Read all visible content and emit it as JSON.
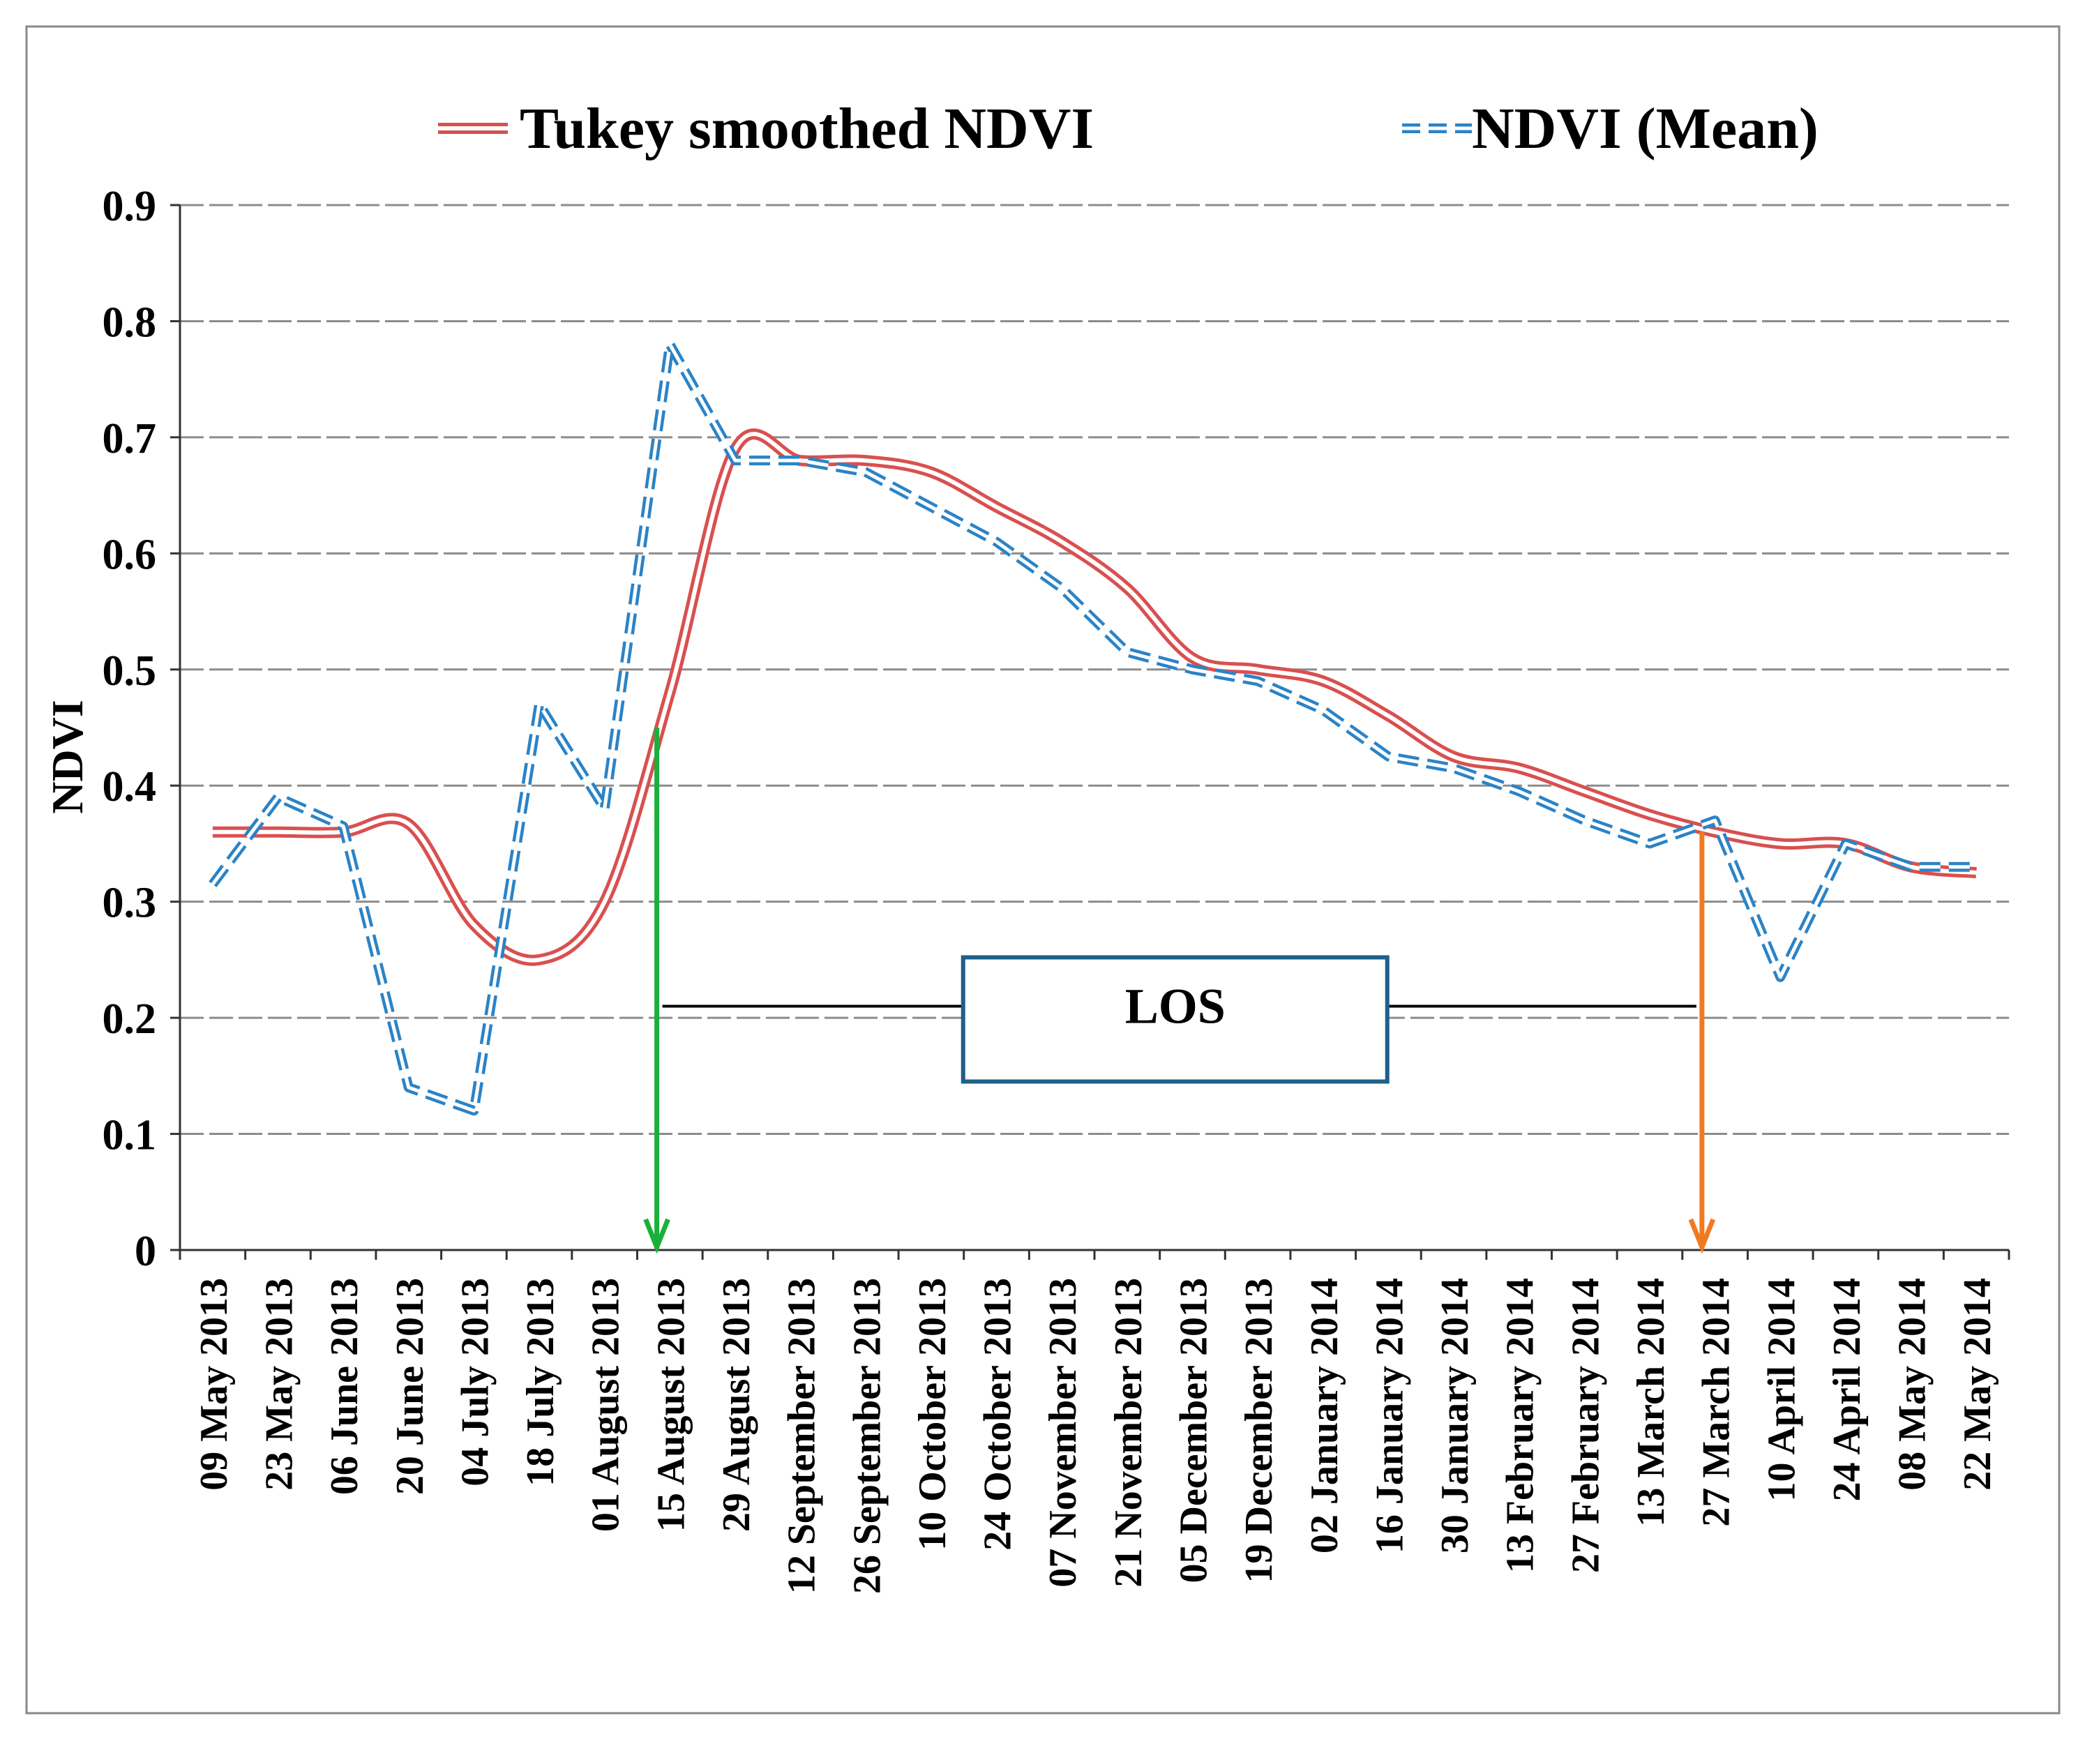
{
  "chart_data": {
    "type": "line",
    "title": "",
    "xlabel": "",
    "ylabel": "NDVI",
    "ylim": [
      0,
      0.9
    ],
    "yticks": [
      "0",
      "0.1",
      "0.2",
      "0.3",
      "0.4",
      "0.5",
      "0.6",
      "0.7",
      "0.8",
      "0.9"
    ],
    "grid": true,
    "legend": "top",
    "categories": [
      "09 May 2013",
      "23 May 2013",
      "06 June 2013",
      "20 June 2013",
      "04 July 2013",
      "18 July 2013",
      "01 August 2013",
      "15 August 2013",
      "29 August 2013",
      "12 September 2013",
      "26 September 2013",
      "10 October 2013",
      "24 October 2013",
      "07 November 2013",
      "21 November 2013",
      "05 December 2013",
      "19 December 2013",
      "02 January 2014",
      "16 January 2014",
      "30 January 2014",
      "13 February 2014",
      "27 February 2014",
      "13 March 2014",
      "27 March 2014",
      "10 April 2014",
      "24 April 2014",
      "08 May 2014",
      "22 May 2014"
    ],
    "series": [
      {
        "name": "Tukey smoothed NDVI",
        "color": "#d9504f",
        "style": "double-line",
        "values": [
          0.36,
          0.36,
          0.36,
          0.367,
          0.28,
          0.25,
          0.3,
          0.48,
          0.69,
          0.68,
          0.68,
          0.67,
          0.64,
          0.61,
          0.57,
          0.51,
          0.5,
          0.49,
          0.46,
          0.425,
          0.415,
          0.395,
          0.375,
          0.36,
          0.35,
          0.35,
          0.33,
          0.325
        ]
      },
      {
        "name": "NDVI (Mean)",
        "color": "#2b83c6",
        "style": "dashed",
        "values": [
          0.315,
          0.39,
          0.365,
          0.14,
          0.12,
          0.47,
          0.38,
          0.78,
          0.68,
          0.68,
          0.67,
          0.64,
          0.61,
          0.57,
          0.515,
          0.5,
          0.49,
          0.465,
          0.425,
          0.415,
          0.395,
          0.37,
          0.35,
          0.37,
          0.235,
          0.35,
          0.33,
          0.33
        ]
      }
    ],
    "annotations": {
      "los_label": "LOS",
      "los_level": 0.21,
      "start_arrow": {
        "x_index": 6.8,
        "from_value": 0.45,
        "color": "#1ab03a"
      },
      "end_arrow": {
        "x_index": 22.8,
        "from_value": 0.36,
        "color": "#f07a22"
      }
    }
  }
}
